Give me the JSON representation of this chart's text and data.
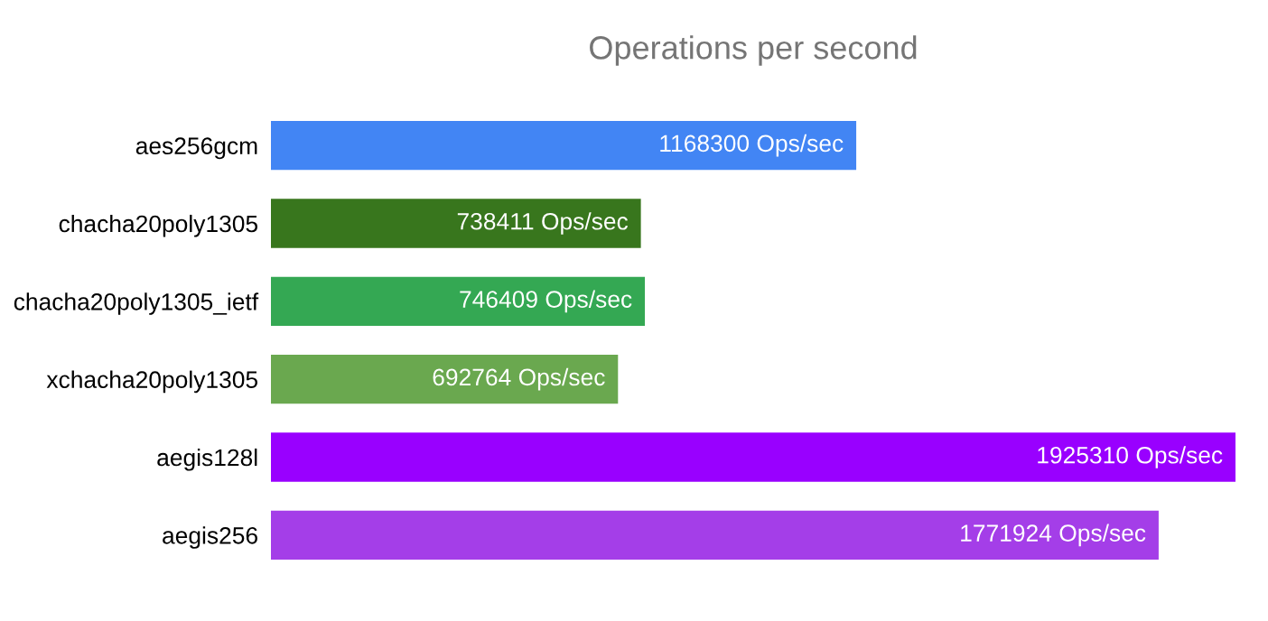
{
  "chart_data": {
    "type": "bar",
    "orientation": "horizontal",
    "title": "Operations per second",
    "categories": [
      "aes256gcm",
      "chacha20poly1305",
      "chacha20poly1305_ietf",
      "xchacha20poly1305",
      "aegis128l",
      "aegis256"
    ],
    "values": [
      1168300,
      738411,
      746409,
      692764,
      1925310,
      1771924
    ],
    "colors": [
      "#4285f4",
      "#38761d",
      "#34a853",
      "#6aa84f",
      "#9900ff",
      "#a43ee8"
    ],
    "value_labels": [
      "1168300 Ops/sec",
      "738411 Ops/sec",
      "746409 Ops/sec",
      "692764 Ops/sec",
      "1925310 Ops/sec",
      "1771924 Ops/sec"
    ],
    "grid": false,
    "legend": false
  }
}
